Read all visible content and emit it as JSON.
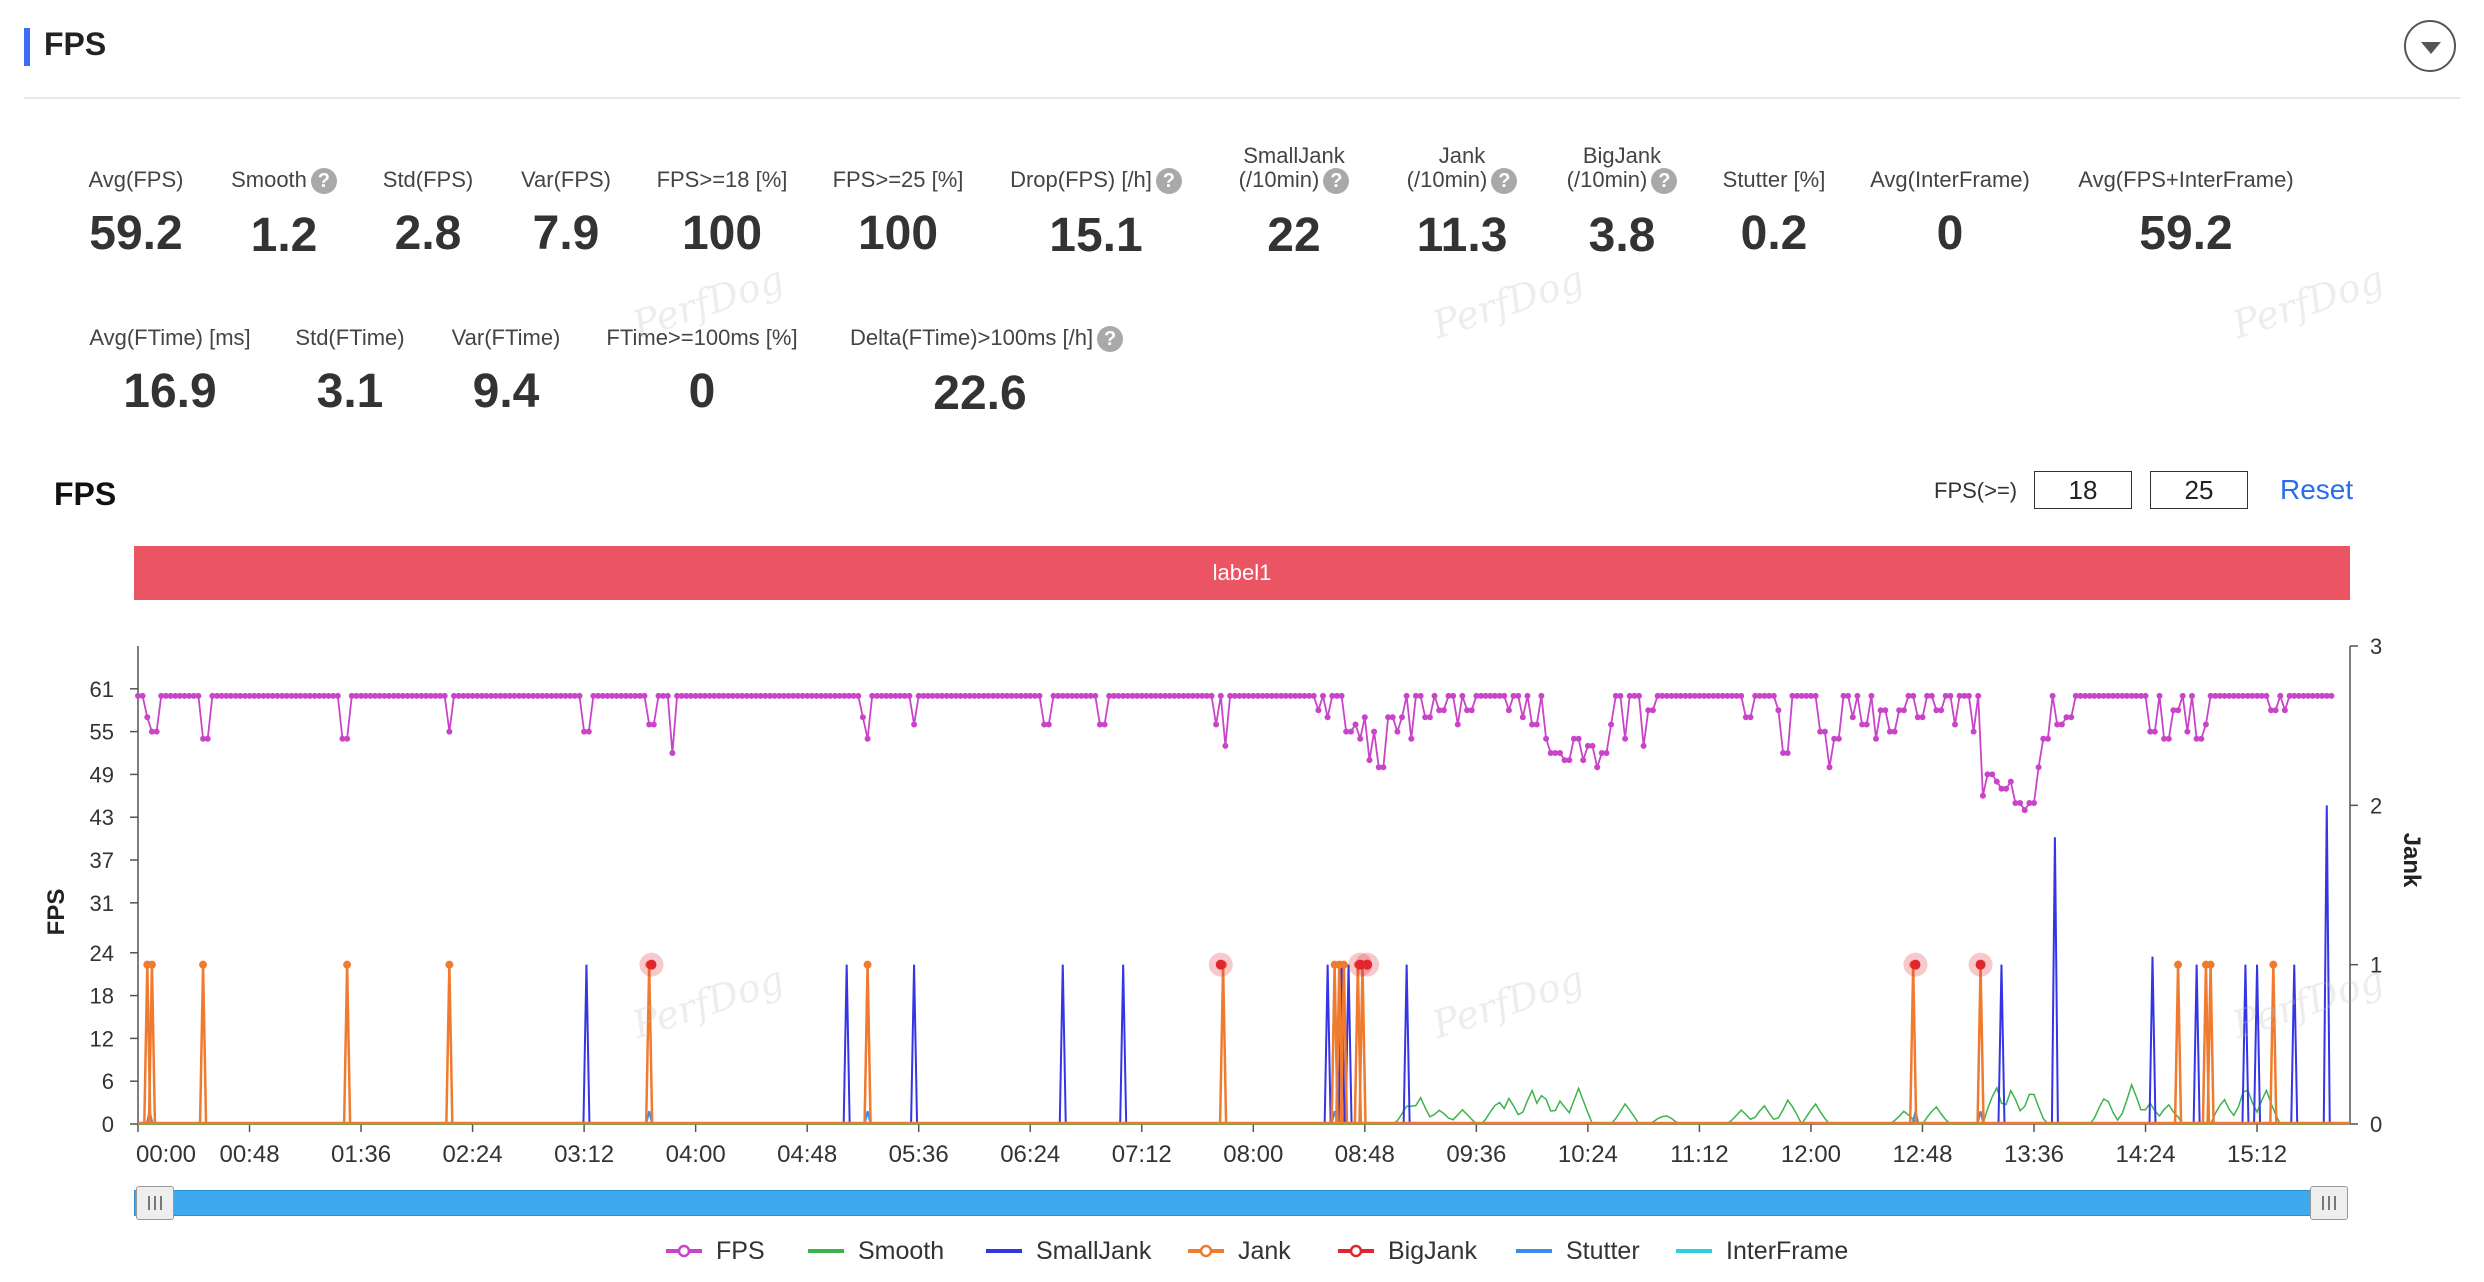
{
  "header": {
    "title": "FPS"
  },
  "metrics_row1": [
    {
      "label": "Avg(FPS)",
      "value": "59.2",
      "help": false
    },
    {
      "label": "Smooth",
      "value": "1.2",
      "help": true
    },
    {
      "label": "Std(FPS)",
      "value": "2.8",
      "help": false
    },
    {
      "label": "Var(FPS)",
      "value": "7.9",
      "help": false
    },
    {
      "label": "FPS>=18 [%]",
      "value": "100",
      "help": false
    },
    {
      "label": "FPS>=25 [%]",
      "value": "100",
      "help": false
    },
    {
      "label": "Drop(FPS) [/h]",
      "value": "15.1",
      "help": true
    },
    {
      "label": "SmallJank",
      "label2": "(/10min)",
      "value": "22",
      "help": true
    },
    {
      "label": "Jank",
      "label2": "(/10min)",
      "value": "11.3",
      "help": true
    },
    {
      "label": "BigJank",
      "label2": "(/10min)",
      "value": "3.8",
      "help": true
    },
    {
      "label": "Stutter [%]",
      "value": "0.2",
      "help": false
    },
    {
      "label": "Avg(InterFrame)",
      "value": "0",
      "help": false
    },
    {
      "label": "Avg(FPS+InterFrame)",
      "value": "59.2",
      "help": false
    }
  ],
  "metrics_row2": [
    {
      "label": "Avg(FTime) [ms]",
      "value": "16.9",
      "help": false
    },
    {
      "label": "Std(FTime)",
      "value": "3.1",
      "help": false
    },
    {
      "label": "Var(FTime)",
      "value": "9.4",
      "help": false
    },
    {
      "label": "FTime>=100ms [%]",
      "value": "0",
      "help": false
    },
    {
      "label": "Delta(FTime)>100ms [/h]",
      "value": "22.6",
      "help": true
    }
  ],
  "watermark_text": "PerfDog",
  "chart_section": {
    "title": "FPS",
    "threshold_label": "FPS(>=)",
    "threshold_low": "18",
    "threshold_high": "25",
    "reset_label": "Reset",
    "band_label": "label1"
  },
  "chart_data": {
    "type": "line",
    "x_unit": "mm:ss",
    "x_ticks": [
      "00:00",
      "00:48",
      "01:36",
      "02:24",
      "03:12",
      "04:00",
      "04:48",
      "05:36",
      "06:24",
      "07:12",
      "08:00",
      "08:48",
      "09:36",
      "10:24",
      "11:12",
      "12:00",
      "12:48",
      "13:36",
      "14:24",
      "15:12"
    ],
    "xlim_seconds": [
      0,
      952
    ],
    "y_left": {
      "label": "FPS",
      "ticks": [
        0,
        6,
        12,
        18,
        24,
        31,
        37,
        43,
        49,
        55,
        61
      ],
      "ylim": [
        0,
        67
      ]
    },
    "y_right": {
      "label": "Jank",
      "ticks": [
        0,
        1,
        2,
        3
      ],
      "ylim": [
        0,
        3
      ]
    },
    "grid": false,
    "legend_position": "bottom",
    "colors": {
      "FPS": "#c944c9",
      "Smooth": "#3cb44b",
      "SmallJank": "#3535e6",
      "Jank": "#f07b2f",
      "BigJank": "#e0262f",
      "Stutter": "#3c8cf0",
      "InterFrame": "#2ecde0"
    },
    "series": [
      {
        "name": "FPS",
        "axis": "left",
        "baseline": 60,
        "dips": [
          [
            5,
            57
          ],
          [
            7,
            55
          ],
          [
            29,
            54
          ],
          [
            89,
            54
          ],
          [
            134,
            55
          ],
          [
            193,
            55
          ],
          [
            221,
            56
          ],
          [
            230,
            52
          ],
          [
            312,
            57
          ],
          [
            313,
            54
          ],
          [
            334,
            56
          ],
          [
            391,
            56
          ],
          [
            415,
            56
          ],
          [
            464,
            56
          ],
          [
            468,
            53
          ],
          [
            508,
            58
          ],
          [
            512,
            57
          ],
          [
            521,
            55
          ],
          [
            524,
            56
          ],
          [
            526,
            54
          ],
          [
            528,
            57
          ],
          [
            530,
            51
          ],
          [
            532,
            55
          ],
          [
            535,
            50
          ],
          [
            539,
            57
          ],
          [
            542,
            55
          ],
          [
            544,
            57
          ],
          [
            548,
            54
          ],
          [
            555,
            57
          ],
          [
            561,
            58
          ],
          [
            568,
            56
          ],
          [
            573,
            58
          ],
          [
            590,
            58
          ],
          [
            596,
            57
          ],
          [
            601,
            56
          ],
          [
            606,
            54
          ],
          [
            609,
            52
          ],
          [
            612,
            52
          ],
          [
            615,
            51
          ],
          [
            619,
            54
          ],
          [
            622,
            51
          ],
          [
            625,
            53
          ],
          [
            628,
            50
          ],
          [
            631,
            52
          ],
          [
            634,
            56
          ],
          [
            640,
            54
          ],
          [
            648,
            53
          ],
          [
            651,
            58
          ],
          [
            693,
            57
          ],
          [
            707,
            58
          ],
          [
            709,
            52
          ],
          [
            725,
            55
          ],
          [
            728,
            50
          ],
          [
            731,
            54
          ],
          [
            738,
            57
          ],
          [
            743,
            56
          ],
          [
            748,
            54
          ],
          [
            751,
            58
          ],
          [
            755,
            55
          ],
          [
            759,
            58
          ],
          [
            767,
            57
          ],
          [
            775,
            58
          ],
          [
            782,
            56
          ],
          [
            790,
            55
          ],
          [
            794,
            46
          ],
          [
            797,
            49
          ],
          [
            800,
            48
          ],
          [
            803,
            47
          ],
          [
            806,
            48
          ],
          [
            809,
            45
          ],
          [
            812,
            44
          ],
          [
            815,
            45
          ],
          [
            818,
            50
          ],
          [
            821,
            54
          ],
          [
            827,
            56
          ],
          [
            831,
            57
          ],
          [
            867,
            55
          ],
          [
            873,
            54
          ],
          [
            877,
            58
          ],
          [
            882,
            55
          ],
          [
            887,
            54
          ],
          [
            890,
            56
          ],
          [
            919,
            58
          ],
          [
            924,
            58
          ]
        ]
      },
      {
        "name": "Smooth",
        "axis": "left",
        "note": "low noisy series mostly 0-8",
        "bursts": [
          [
            547,
            3
          ],
          [
            552,
            4
          ],
          [
            560,
            3
          ],
          [
            570,
            2
          ],
          [
            585,
            5
          ],
          [
            590,
            4
          ],
          [
            600,
            5
          ],
          [
            605,
            6
          ],
          [
            612,
            4
          ],
          [
            620,
            5
          ],
          [
            640,
            3
          ],
          [
            657,
            2
          ],
          [
            690,
            2
          ],
          [
            700,
            3
          ],
          [
            710,
            4
          ],
          [
            722,
            3
          ],
          [
            760,
            2
          ],
          [
            774,
            3
          ],
          [
            800,
            7
          ],
          [
            806,
            6
          ],
          [
            815,
            5
          ],
          [
            847,
            5
          ],
          [
            858,
            6
          ],
          [
            866,
            3
          ],
          [
            874,
            4
          ],
          [
            898,
            5
          ],
          [
            907,
            6
          ],
          [
            916,
            5
          ]
        ]
      },
      {
        "name": "SmallJank",
        "axis": "right",
        "times": [
          193,
          305,
          314,
          334,
          398,
          424,
          512,
          515,
          518,
          521,
          546,
          802,
          825,
          867,
          886,
          907,
          912,
          928,
          942
        ],
        "values": [
          1,
          1,
          1,
          1,
          1,
          1,
          1,
          1,
          1,
          1,
          1,
          1,
          1.8,
          1.05,
          1,
          1,
          1,
          1,
          2
        ]
      },
      {
        "name": "Jank",
        "axis": "right",
        "times": [
          4,
          6,
          28,
          90,
          134,
          220,
          314,
          467,
          515,
          517,
          519,
          525,
          527,
          764,
          793,
          878,
          890,
          892,
          919
        ],
        "values": [
          1,
          1,
          1,
          1,
          1,
          1,
          1,
          1,
          1,
          1,
          1,
          1,
          1,
          1,
          1,
          1,
          1,
          1,
          1
        ]
      },
      {
        "name": "BigJank",
        "axis": "right",
        "times": [
          221,
          466,
          526,
          529,
          765,
          793
        ],
        "values": [
          1,
          1,
          1,
          1,
          1,
          1
        ]
      },
      {
        "name": "Stutter",
        "axis": "right",
        "times": [
          5,
          220,
          314,
          515,
          765,
          793
        ],
        "values": [
          0.08,
          0.08,
          0.08,
          0.08,
          0.08,
          0.08
        ]
      },
      {
        "name": "InterFrame",
        "axis": "right",
        "values": []
      }
    ]
  },
  "legend": [
    {
      "name": "FPS",
      "color": "#c944c9",
      "marker": "dot"
    },
    {
      "name": "Smooth",
      "color": "#3cb44b",
      "marker": "line"
    },
    {
      "name": "SmallJank",
      "color": "#3535e6",
      "marker": "line"
    },
    {
      "name": "Jank",
      "color": "#f07b2f",
      "marker": "dot"
    },
    {
      "name": "BigJank",
      "color": "#e0262f",
      "marker": "dot"
    },
    {
      "name": "Stutter",
      "color": "#3c8cf0",
      "marker": "line"
    },
    {
      "name": "InterFrame",
      "color": "#2ecde0",
      "marker": "line"
    }
  ],
  "slider": {
    "start_pct": 0,
    "end_pct": 100
  }
}
